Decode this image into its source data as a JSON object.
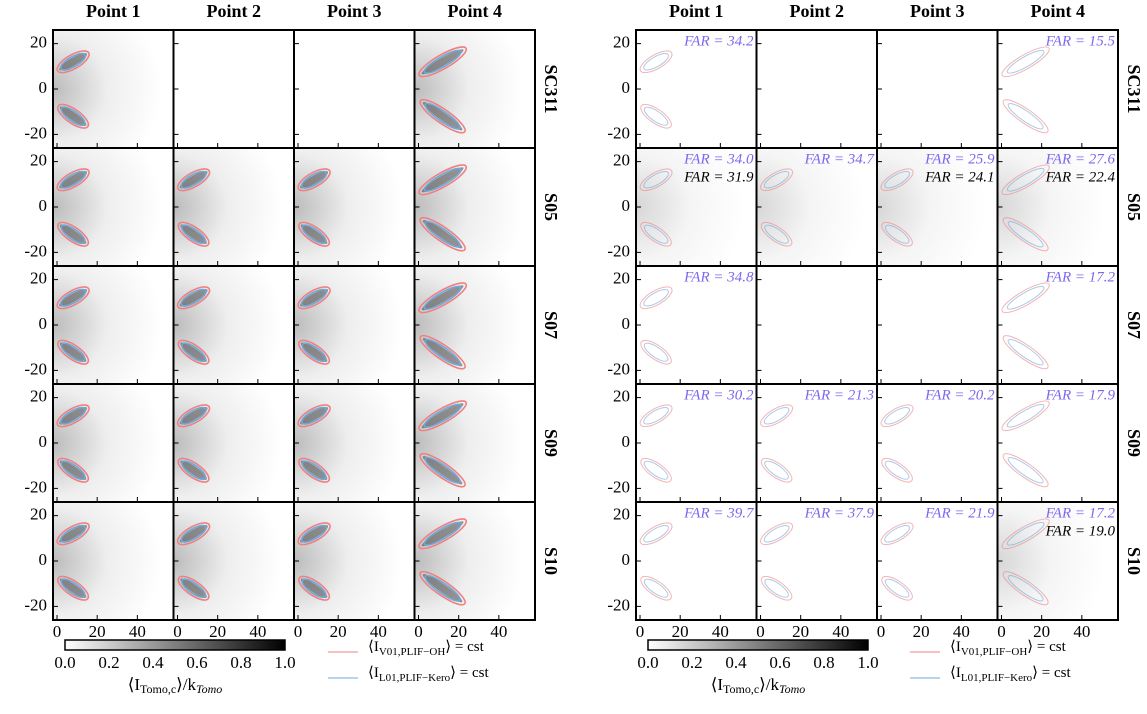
{
  "figure": {
    "columns": [
      "Point 1",
      "Point 2",
      "Point 3",
      "Point 4"
    ],
    "rows": [
      "SC311",
      "S05",
      "S07",
      "S09",
      "S10"
    ],
    "xlim": [
      -2,
      58
    ],
    "ylim": [
      -26,
      26
    ],
    "xticks": [
      0,
      20,
      40
    ],
    "yticks": [
      -20,
      0,
      20
    ],
    "far": [
      [
        "FAR = 34.2",
        null,
        null,
        "FAR = 15.5"
      ],
      [
        "FAR = 34.0",
        "FAR = 34.7",
        "FAR = 25.9",
        "FAR = 27.6"
      ],
      [
        "FAR = 34.8",
        null,
        null,
        "FAR = 17.2"
      ],
      [
        "FAR = 30.2",
        "FAR = 21.3",
        "FAR = 20.2",
        "FAR = 17.9"
      ],
      [
        "FAR = 39.7",
        "FAR = 37.9",
        "FAR = 21.9",
        "FAR = 17.2"
      ]
    ],
    "far_second": [
      [
        null,
        null,
        null,
        null
      ],
      [
        "FAR = 31.9",
        null,
        "FAR = 24.1",
        "FAR = 22.4"
      ],
      [
        null,
        null,
        null,
        null
      ],
      [
        null,
        null,
        null,
        null
      ],
      [
        null,
        null,
        null,
        "FAR = 19.0"
      ]
    ],
    "colorbar": {
      "ticks": [
        "0.0",
        "0.2",
        "0.4",
        "0.6",
        "0.8",
        "1.0"
      ],
      "label": {
        "open": "⟨I",
        "subscript": "Tomo,c",
        "close": "⟩/k",
        "subscript2": "Tomo"
      }
    },
    "legend": [
      {
        "open": "⟨I",
        "subscript": "V01,PLIF−OH",
        "close": "⟩ = cst",
        "color": "#f08080"
      },
      {
        "open": "⟨I",
        "subscript": "L01,PLIF−Kero",
        "close": "⟩ = cst",
        "color": "#6fa8dc"
      }
    ]
  }
}
